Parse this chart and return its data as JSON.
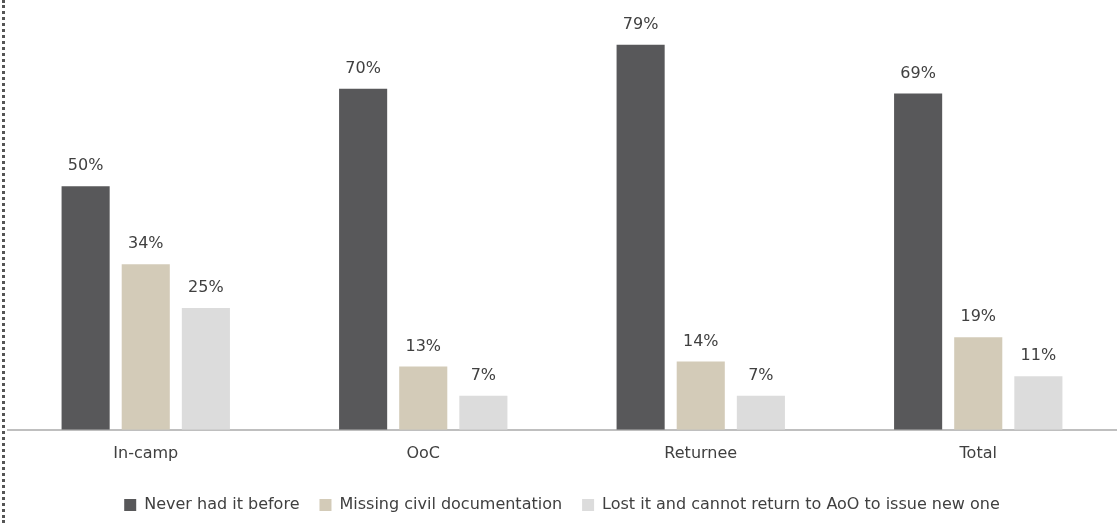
{
  "chart_data": {
    "type": "bar",
    "categories": [
      "In-camp",
      "OoC",
      "Returnee",
      "Total"
    ],
    "series": [
      {
        "name": "Never had it before",
        "color": "#58585a",
        "values": [
          50,
          70,
          79,
          69
        ],
        "value_labels": [
          "50%",
          "70%",
          "79%",
          "69%"
        ]
      },
      {
        "name": "Missing civil documentation",
        "color": "#d3cbb8",
        "values": [
          34,
          13,
          14,
          19
        ],
        "value_labels": [
          "34%",
          "13%",
          "14%",
          "19%"
        ]
      },
      {
        "name": "Lost it and cannot return to AoO to issue new one",
        "color": "#dcdcdc",
        "values": [
          25,
          7,
          7,
          11
        ],
        "value_labels": [
          "25%",
          "7%",
          "7%",
          "11%"
        ]
      }
    ],
    "legend": "bottom",
    "grid": false,
    "tick_labels": "x"
  }
}
